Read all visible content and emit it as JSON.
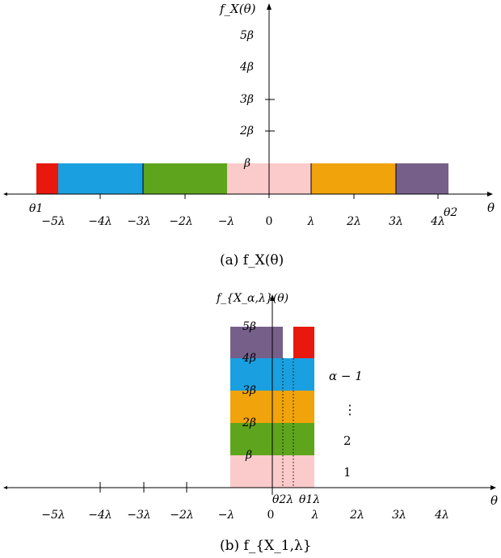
{
  "colors": {
    "red": "#e8180c",
    "blue": "#1aa0e0",
    "green": "#5ea41c",
    "pink": "#fbcaca",
    "orange": "#f0a30a",
    "purple": "#76608a"
  },
  "top": {
    "y_label": "f_X(θ)",
    "x_label": "θ",
    "y_ticks": [
      "5β",
      "4β",
      "3β",
      "2β"
    ],
    "beta_label": "β",
    "x_ticks": [
      "−5λ",
      "−4λ",
      "−3λ",
      "−2λ",
      "−λ",
      "0",
      "λ",
      "2λ",
      "3λ",
      "4λ"
    ],
    "theta1": "θ1",
    "theta2": "θ2",
    "caption": "(a)  f_X(θ)",
    "segments": [
      {
        "color": "red",
        "from": -5.3,
        "to": -4.8
      },
      {
        "color": "blue",
        "from": -4.8,
        "to": -3.0
      },
      {
        "color": "green",
        "from": -3.0,
        "to": -1.0
      },
      {
        "color": "pink",
        "from": -1.0,
        "to": 1.0
      },
      {
        "color": "orange",
        "from": 1.0,
        "to": 3.0
      },
      {
        "color": "purple",
        "from": 3.0,
        "to": 4.25
      }
    ]
  },
  "bottom": {
    "y_label": "f_{X_α,λ}(θ)",
    "x_label": "θ",
    "y_ticks": [
      "5β",
      "4β",
      "3β",
      "2β",
      "β"
    ],
    "x_ticks": [
      "−5λ",
      "−4λ",
      "−3λ",
      "−2λ",
      "−λ",
      "0",
      "λ",
      "2λ",
      "3λ",
      "4λ"
    ],
    "theta_2lambda": "θ2λ",
    "theta_1lambda": "θ1λ",
    "right_labels": [
      "α − 1",
      "⋮",
      "2",
      "1"
    ],
    "caption": "(b)  f_{X_1,λ}",
    "stack": [
      "pink",
      "green",
      "orange",
      "blue",
      "purple"
    ],
    "top_red": "red"
  }
}
